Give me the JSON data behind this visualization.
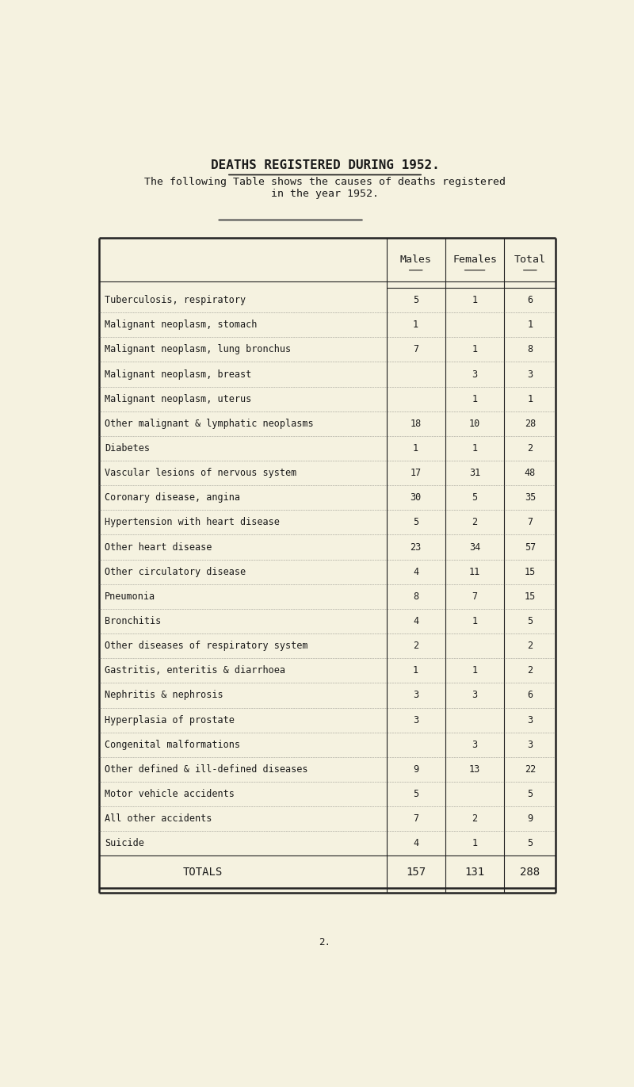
{
  "title": "DEATHS REGISTERED DURING 1952.",
  "subtitle_line1": "The following Table shows the causes of deaths registered",
  "subtitle_line2": "in the year 1952.",
  "col_headers": [
    "Males",
    "Females",
    "Total"
  ],
  "rows": [
    {
      "cause": "Tuberculosis, respiratory",
      "males": "5",
      "females": "1",
      "total": "6"
    },
    {
      "cause": "Malignant neoplasm, stomach",
      "males": "1",
      "females": "",
      "total": "1"
    },
    {
      "cause": "Malignant neoplasm, lung bronchus",
      "males": "7",
      "females": "1",
      "total": "8"
    },
    {
      "cause": "Malignant neoplasm, breast",
      "males": "",
      "females": "3",
      "total": "3"
    },
    {
      "cause": "Malignant neoplasm, uterus",
      "males": "",
      "females": "1",
      "total": "1"
    },
    {
      "cause": "Other malignant & lymphatic neoplasms",
      "males": "18",
      "females": "10",
      "total": "28"
    },
    {
      "cause": "Diabetes",
      "males": "1",
      "females": "1",
      "total": "2"
    },
    {
      "cause": "Vascular lesions of nervous system",
      "males": "17",
      "females": "31",
      "total": "48"
    },
    {
      "cause": "Coronary disease, angina",
      "males": "30",
      "females": "5",
      "total": "35"
    },
    {
      "cause": "Hypertension with heart disease",
      "males": "5",
      "females": "2",
      "total": "7"
    },
    {
      "cause": "Other heart disease",
      "males": "23",
      "females": "34",
      "total": "57"
    },
    {
      "cause": "Other circulatory disease",
      "males": "4",
      "females": "11",
      "total": "15"
    },
    {
      "cause": "Pneumonia",
      "males": "8",
      "females": "7",
      "total": "15"
    },
    {
      "cause": "Bronchitis",
      "males": "4",
      "females": "1",
      "total": "5"
    },
    {
      "cause": "Other diseases of respiratory system",
      "males": "2",
      "females": "",
      "total": "2"
    },
    {
      "cause": "Gastritis, enteritis & diarrhoea",
      "males": "1",
      "females": "1",
      "total": "2"
    },
    {
      "cause": "Nephritis & nephrosis",
      "males": "3",
      "females": "3",
      "total": "6"
    },
    {
      "cause": "Hyperplasia of prostate",
      "males": "3",
      "females": "",
      "total": "3"
    },
    {
      "cause": "Congenital malformations",
      "males": "",
      "females": "3",
      "total": "3"
    },
    {
      "cause": "Other defined & ill-defined diseases",
      "males": "9",
      "females": "13",
      "total": "22"
    },
    {
      "cause": "Motor vehicle accidents",
      "males": "5",
      "females": "",
      "total": "5"
    },
    {
      "cause": "All other accidents",
      "males": "7",
      "females": "2",
      "total": "9"
    },
    {
      "cause": "Suicide",
      "males": "4",
      "females": "1",
      "total": "5"
    }
  ],
  "totals_label": "TOTALS",
  "totals": {
    "males": "157",
    "females": "131",
    "total": "288"
  },
  "page_number": "2.",
  "bg_color": "#f5f2e0",
  "text_color": "#1a1a1a",
  "font_family": "DejaVu Sans Mono"
}
